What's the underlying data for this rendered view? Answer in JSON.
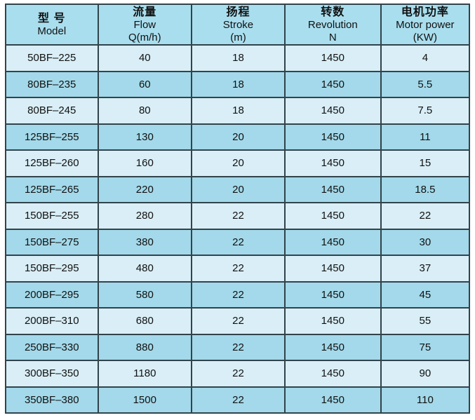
{
  "colors": {
    "page_background": "#ffffff",
    "header_bg": "#a9deee",
    "row_light_bg": "#d9eef6",
    "row_dark_bg": "#a3d9ea",
    "grid_line": "#31434b",
    "outer_border": "#16211f",
    "text": "#111111"
  },
  "table": {
    "columns": [
      {
        "key": "model",
        "zh": "型  号",
        "en": "Model",
        "sub": ""
      },
      {
        "key": "flow",
        "zh": "流量",
        "en": "Flow",
        "sub": "Q(m/h)"
      },
      {
        "key": "stroke",
        "zh": "扬程",
        "en": "Stroke",
        "sub": "(m)"
      },
      {
        "key": "revolution",
        "zh": "转数",
        "en": "Revolution",
        "sub": "N"
      },
      {
        "key": "motor_power",
        "zh": "电机功率",
        "en": "Motor power",
        "sub": "(KW)"
      }
    ],
    "rows": [
      {
        "model": "50BF–225",
        "flow": "40",
        "stroke": "18",
        "revolution": "1450",
        "motor_power": "4"
      },
      {
        "model": "80BF–235",
        "flow": "60",
        "stroke": "18",
        "revolution": "1450",
        "motor_power": "5.5"
      },
      {
        "model": "80BF–245",
        "flow": "80",
        "stroke": "18",
        "revolution": "1450",
        "motor_power": "7.5"
      },
      {
        "model": "125BF–255",
        "flow": "130",
        "stroke": "20",
        "revolution": "1450",
        "motor_power": "11"
      },
      {
        "model": "125BF–260",
        "flow": "160",
        "stroke": "20",
        "revolution": "1450",
        "motor_power": "15"
      },
      {
        "model": "125BF–265",
        "flow": "220",
        "stroke": "20",
        "revolution": "1450",
        "motor_power": "18.5"
      },
      {
        "model": "150BF–255",
        "flow": "280",
        "stroke": "22",
        "revolution": "1450",
        "motor_power": "22"
      },
      {
        "model": "150BF–275",
        "flow": "380",
        "stroke": "22",
        "revolution": "1450",
        "motor_power": "30"
      },
      {
        "model": "150BF–295",
        "flow": "480",
        "stroke": "22",
        "revolution": "1450",
        "motor_power": "37"
      },
      {
        "model": "200BF–295",
        "flow": "580",
        "stroke": "22",
        "revolution": "1450",
        "motor_power": "45"
      },
      {
        "model": "200BF–310",
        "flow": "680",
        "stroke": "22",
        "revolution": "1450",
        "motor_power": "55"
      },
      {
        "model": "250BF–330",
        "flow": "880",
        "stroke": "22",
        "revolution": "1450",
        "motor_power": "75"
      },
      {
        "model": "300BF–350",
        "flow": "1180",
        "stroke": "22",
        "revolution": "1450",
        "motor_power": "90"
      },
      {
        "model": "350BF–380",
        "flow": "1500",
        "stroke": "22",
        "revolution": "1450",
        "motor_power": "110"
      }
    ]
  }
}
